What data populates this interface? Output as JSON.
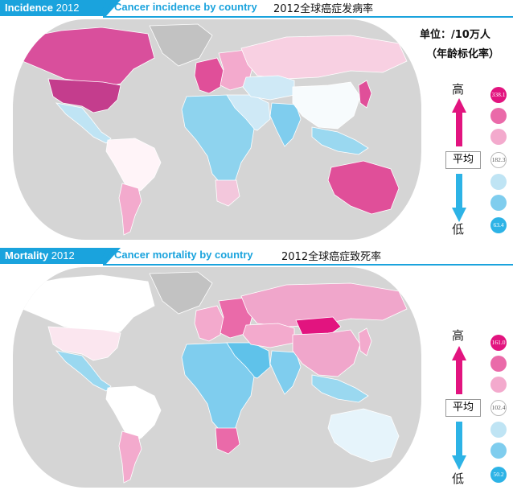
{
  "incidence": {
    "tag_bold": "Incidence",
    "tag_year": "2012",
    "title_en": "Cancer incidence by country",
    "title_cn": "2012全球癌症发病率",
    "unit_line1": "单位：/10万人",
    "unit_line2": "（年龄标化率）",
    "legend": {
      "high": "高",
      "low": "低",
      "average": "平均",
      "max_value": "338.1",
      "avg_value": "182.3",
      "min_value": "63.4"
    }
  },
  "mortality": {
    "tag_bold": "Mortality",
    "tag_year": "2012",
    "title_en": "Cancer mortality by country",
    "title_cn": "2012全球癌症致死率",
    "legend": {
      "high": "高",
      "low": "低",
      "average": "平均",
      "max_value": "161.0",
      "avg_value": "102.4",
      "min_value": "50.2"
    }
  },
  "scale_colors": [
    "#e2147f",
    "#ea6aa9",
    "#f3aacd",
    "#ffffff",
    "#bfe4f4",
    "#7fcdee",
    "#2db3e6"
  ],
  "incidence_regions": {
    "north-america": "#d94f9c",
    "usa": "#c43d8d",
    "greenland": "#c2c2c2",
    "mexico-central-america": "#bfe4f4",
    "south-america-north": "#fff4f8",
    "south-america-south": "#f3aacd",
    "western-europe": "#e04f99",
    "eastern-europe": "#f3aacd",
    "russia": "#f8d0e2",
    "middle-east": "#cfe9f6",
    "africa": "#8ed3ee",
    "south-africa": "#f3c7dc",
    "central-asia": "#cfe9f6",
    "india": "#7fcdee",
    "china": "#f7fbfd",
    "southeast-asia": "#9ad8f0",
    "japan-korea": "#e04f99",
    "australia": "#e04f99",
    "new-zealand": "#e04f99"
  },
  "mortality_regions": {
    "north-america": "#ffffff",
    "usa": "#fbe6ef",
    "greenland": "#c2c2c2",
    "mexico-central-america": "#9ad8f0",
    "south-america-north": "#ffffff",
    "south-america-south": "#f3aacd",
    "western-europe": "#f3aacd",
    "eastern-europe": "#ea6aa9",
    "russia": "#f0a6cb",
    "middle-east": "#5fc2ea",
    "africa": "#7fcdee",
    "south-africa": "#ea6aa9",
    "central-asia": "#f3aacd",
    "mongolia": "#e2147f",
    "india": "#7fcdee",
    "china": "#f0a6cb",
    "southeast-asia": "#9ad8f0",
    "japan-korea": "#f3aacd",
    "australia": "#e6f4fb",
    "new-zealand": "#e6f4fb"
  }
}
